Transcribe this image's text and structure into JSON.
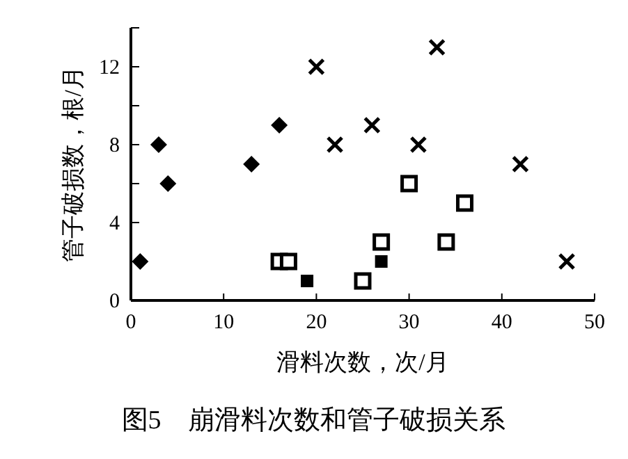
{
  "chart_data": {
    "type": "scatter",
    "title": "图5　崩滑料次数和管子破损关系",
    "xlabel": "滑料次数，次/月",
    "ylabel": "管子破损数，根/月",
    "series": [
      {
        "color": "#000000",
        "marker": "diamond",
        "x": [
          1,
          3,
          4,
          13,
          16
        ],
        "values": [
          2,
          8,
          6,
          7,
          9
        ]
      },
      {
        "color": "#ffffff",
        "marker": "square",
        "x": [
          16,
          17,
          25,
          27,
          30,
          34,
          36
        ],
        "values": [
          2,
          2,
          1,
          3,
          6,
          3,
          5
        ]
      },
      {
        "color": "#000000",
        "marker": "square",
        "x": [
          19,
          27
        ],
        "values": [
          1,
          2
        ]
      },
      {
        "color": "#000000",
        "marker": "cross",
        "x": [
          20,
          22,
          26,
          31,
          33,
          42,
          47
        ],
        "values": [
          12,
          8,
          9,
          8,
          13,
          7,
          2
        ]
      }
    ],
    "xlim": [
      0,
      50
    ],
    "xticks": [
      0,
      10,
      20,
      30,
      40,
      50
    ],
    "ylim": [
      0,
      14
    ],
    "yticks": [
      0,
      {
        "value": 2,
        "label": null
      },
      4,
      {
        "value": 6,
        "label": null
      },
      8,
      {
        "value": 10,
        "label": null
      },
      12,
      {
        "value": 14,
        "label": null
      }
    ],
    "grid": false
  }
}
